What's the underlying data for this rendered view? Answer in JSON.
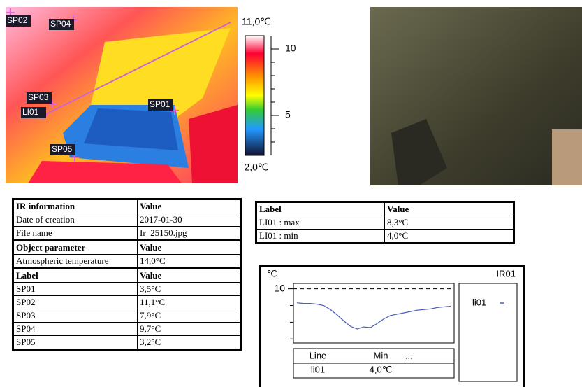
{
  "thermal_image": {
    "labels": [
      "SP02",
      "SP04",
      "SP03",
      "LI01",
      "SP01",
      "SP05"
    ],
    "colorbar": {
      "max_label": "11,0℃",
      "min_label": "2,0℃",
      "lim": [
        2,
        11
      ],
      "ticks": [
        10,
        5
      ],
      "minor_ticks": [
        9,
        8,
        7,
        6,
        4,
        3
      ]
    }
  },
  "ir_table": {
    "header_rows": [
      0,
      3,
      5
    ],
    "rows": [
      [
        "IR information",
        "Value"
      ],
      [
        "Date of creation",
        "2017-01-30"
      ],
      [
        "File name",
        "Ir_25150.jpg"
      ],
      [
        "Object parameter",
        "Value"
      ],
      [
        "Atmospheric temperature",
        "14,0°C"
      ],
      [
        "Label",
        "Value"
      ],
      [
        "SP01",
        "3,5°C"
      ],
      [
        "SP02",
        "11,1°C"
      ],
      [
        "SP03",
        "7,9°C"
      ],
      [
        "SP04",
        "9,7°C"
      ],
      [
        "SP05",
        "3,2°C"
      ]
    ]
  },
  "line_table": {
    "header_rows": [
      0
    ],
    "rows": [
      [
        "Label",
        "Value"
      ],
      [
        "LI01 : max",
        "8,3°C"
      ],
      [
        "LI01 : min",
        "4,0°C"
      ]
    ]
  },
  "profile_chart": {
    "type": "line",
    "y_unit": "℃",
    "title": "IR01",
    "ylim": [
      1.9,
      10.8
    ],
    "yticks": [
      10
    ],
    "minor_yticks": [
      7.5,
      5,
      2.5
    ],
    "series": [
      {
        "name": "li01",
        "color": "#4a5fb5",
        "values": [
          7.9,
          7.8,
          7.8,
          7.7,
          7.5,
          6.9,
          6.1,
          5.2,
          4.4,
          4.0,
          4.3,
          4.2,
          4.8,
          5.5,
          6.0,
          6.2,
          6.4,
          6.6,
          6.8,
          6.9,
          7.0,
          7.2,
          7.3,
          7.4
        ]
      }
    ],
    "table": {
      "header": [
        "Line",
        "Min",
        "..."
      ],
      "rows": [
        [
          "li01",
          "4,0℃"
        ]
      ]
    }
  }
}
